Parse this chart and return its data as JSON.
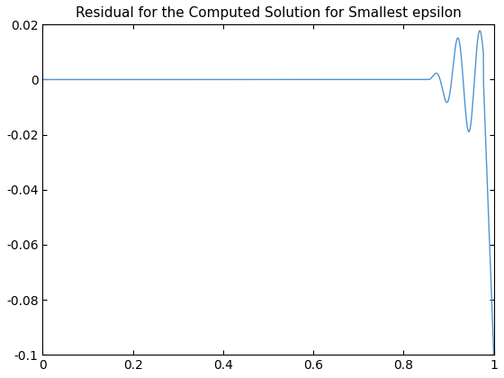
{
  "title": "Residual for the Computed Solution for Smallest epsilon",
  "xlim": [
    0,
    1
  ],
  "ylim": [
    -0.1,
    0.02
  ],
  "xlabel": "",
  "ylabel": "",
  "line_color": "#4d94d4",
  "line_width": 1.0,
  "background_color": "#ffffff",
  "tick_label_size": 10,
  "title_fontsize": 11,
  "xticks": [
    0,
    0.2,
    0.4,
    0.6,
    0.8,
    1.0
  ],
  "yticks": [
    -0.1,
    -0.08,
    -0.06,
    -0.04,
    -0.02,
    0.0,
    0.02
  ]
}
